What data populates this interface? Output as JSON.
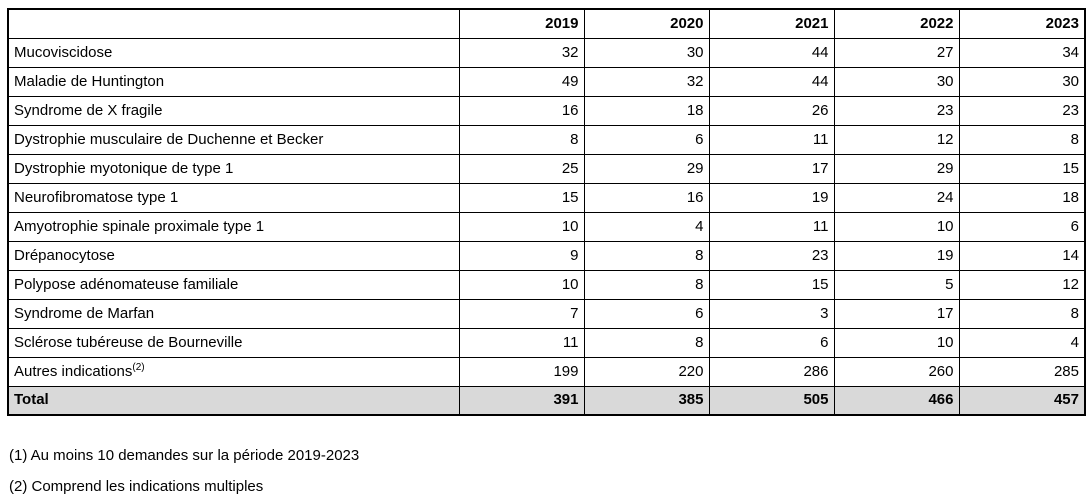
{
  "table": {
    "corner_label": "",
    "headers": [
      "2019",
      "2020",
      "2021",
      "2022",
      "2023"
    ],
    "rows": [
      {
        "label": "Mucoviscidose",
        "values": [
          "32",
          "30",
          "44",
          "27",
          "34"
        ]
      },
      {
        "label": "Maladie de Huntington",
        "values": [
          "49",
          "32",
          "44",
          "30",
          "30"
        ]
      },
      {
        "label": "Syndrome de X fragile",
        "values": [
          "16",
          "18",
          "26",
          "23",
          "23"
        ]
      },
      {
        "label": "Dystrophie musculaire de Duchenne et Becker",
        "values": [
          "8",
          "6",
          "11",
          "12",
          "8"
        ]
      },
      {
        "label": "Dystrophie myotonique de type 1",
        "values": [
          "25",
          "29",
          "17",
          "29",
          "15"
        ]
      },
      {
        "label": "Neurofibromatose type 1",
        "values": [
          "15",
          "16",
          "19",
          "24",
          "18"
        ]
      },
      {
        "label": "Amyotrophie spinale proximale type 1",
        "values": [
          "10",
          "4",
          "11",
          "10",
          "6"
        ]
      },
      {
        "label": "Drépanocytose",
        "values": [
          "9",
          "8",
          "23",
          "19",
          "14"
        ]
      },
      {
        "label": "Polypose adénomateuse familiale",
        "values": [
          "10",
          "8",
          "15",
          "5",
          "12"
        ]
      },
      {
        "label": "Syndrome de Marfan",
        "values": [
          "7",
          "6",
          "3",
          "17",
          "8"
        ]
      },
      {
        "label": "Sclérose tubéreuse de Bourneville",
        "values": [
          "11",
          "8",
          "6",
          "10",
          "4"
        ]
      },
      {
        "label": "Autres indications",
        "sup": "(2)",
        "values": [
          "199",
          "220",
          "286",
          "260",
          "285"
        ]
      }
    ],
    "total": {
      "label": "Total",
      "values": [
        "391",
        "385",
        "505",
        "466",
        "457"
      ]
    },
    "total_row_background": "#d9d9d9",
    "border_color": "#000000"
  },
  "footnotes": [
    "(1) Au moins 10 demandes sur la période 2019-2023",
    "(2) Comprend les indications multiples"
  ]
}
